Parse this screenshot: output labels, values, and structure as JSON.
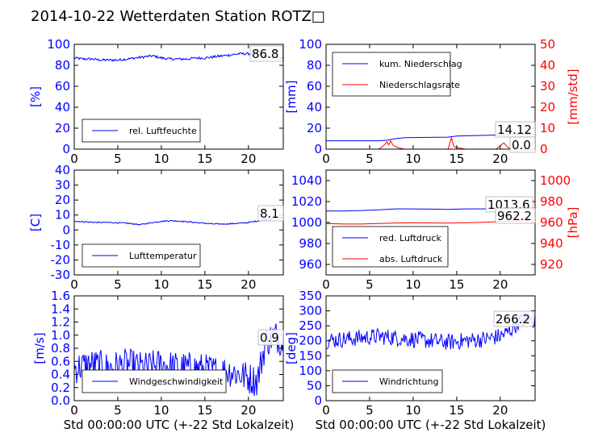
{
  "title": "2014-10-22 Wetterdaten Station ROTZ□",
  "colors": {
    "blue": "#0000ff",
    "red": "#ff0000",
    "black": "#000000"
  },
  "chart_data": [
    {
      "type": "line",
      "ylabel": "[%]",
      "xlabel": "",
      "xlim": [
        0,
        24
      ],
      "ylim": [
        0,
        100
      ],
      "xticks": [
        0,
        5,
        10,
        15,
        20
      ],
      "yticks": [
        0,
        20,
        40,
        60,
        80,
        100
      ],
      "annotation": "86.8",
      "legend": [
        "rel. Luftfeuchte"
      ],
      "series": [
        {
          "name": "rel. Luftfeuchte",
          "color": "blue",
          "x": [
            0,
            1,
            2,
            3,
            4,
            5,
            6,
            7,
            8,
            9,
            10,
            11,
            12,
            13,
            14,
            15,
            16,
            17,
            18,
            19,
            20,
            21,
            22,
            23,
            24
          ],
          "y": [
            87,
            86,
            86,
            85,
            85,
            85,
            86,
            87,
            88,
            89,
            87,
            86,
            86,
            86,
            87,
            87,
            88,
            89,
            90,
            91,
            91,
            90,
            88,
            87,
            86.8
          ],
          "noise": 1.2
        }
      ]
    },
    {
      "type": "line",
      "ylabel": "[mm]",
      "ylabel2": "[mm/std]",
      "xlabel": "",
      "xlim": [
        0,
        24
      ],
      "ylim": [
        0,
        100
      ],
      "ylim2": [
        0,
        50
      ],
      "xticks": [
        0,
        5,
        10,
        15,
        20
      ],
      "yticks": [
        0,
        20,
        40,
        60,
        80,
        100
      ],
      "yticks2": [
        0,
        10,
        20,
        30,
        40,
        50
      ],
      "annotations": [
        "14.12",
        "0.0"
      ],
      "legend": [
        "kum. Niederschlag",
        "Niederschlagsrate"
      ],
      "series": [
        {
          "name": "kum. Niederschlag",
          "color": "blue",
          "x": [
            0,
            6,
            7,
            8,
            9,
            14,
            15,
            20,
            22,
            24
          ],
          "y": [
            8,
            8,
            8.5,
            10,
            11,
            11.5,
            12.5,
            13.5,
            14.1,
            14.12
          ]
        },
        {
          "name": "Niederschlagsrate",
          "color": "red",
          "axis": "right",
          "x": [
            0,
            6.0,
            6.4,
            6.8,
            7.0,
            7.2,
            7.4,
            7.6,
            7.8,
            8.2,
            8.6,
            9,
            14.0,
            14.4,
            14.6,
            14.8,
            15.2,
            15.6,
            16,
            19.5,
            20,
            20.4,
            20.8,
            21.2,
            24
          ],
          "y": [
            0,
            0,
            1.0,
            2.5,
            3.5,
            2.0,
            4.0,
            2.5,
            1.5,
            0.8,
            0.4,
            0,
            0,
            5.5,
            2.0,
            1.0,
            0.6,
            0.3,
            0,
            0,
            1.5,
            3.0,
            1.2,
            0,
            0
          ]
        }
      ]
    },
    {
      "type": "line",
      "ylabel": "[C]",
      "xlabel": "",
      "xlim": [
        0,
        24
      ],
      "ylim": [
        -30,
        40
      ],
      "xticks": [
        0,
        5,
        10,
        15,
        20
      ],
      "yticks": [
        -30,
        -20,
        -10,
        0,
        10,
        20,
        30,
        40
      ],
      "annotation": "8.1",
      "legend": [
        "Lufttemperatur"
      ],
      "series": [
        {
          "name": "Lufttemperatur",
          "color": "blue",
          "x": [
            0,
            1,
            2,
            3,
            4,
            5,
            6,
            7,
            7.5,
            8,
            9,
            10,
            11,
            12,
            13,
            14,
            15,
            16,
            17,
            18,
            19,
            20,
            21,
            22,
            23,
            24
          ],
          "y": [
            6,
            5.5,
            5.2,
            5,
            5,
            4.8,
            4.5,
            4,
            3.5,
            4,
            5,
            5.8,
            6.2,
            6,
            5.5,
            5,
            4.5,
            4,
            4,
            4.2,
            4.5,
            5,
            6,
            7,
            7.8,
            8.1
          ],
          "noise": 0.4
        }
      ]
    },
    {
      "type": "line",
      "ylabel2": "[hPa]",
      "xlabel": "",
      "xlim": [
        0,
        24
      ],
      "ylim": [
        950,
        1050
      ],
      "ylim2": [
        910,
        1010
      ],
      "xticks": [
        0,
        5,
        10,
        15,
        20
      ],
      "yticks": [
        960,
        980,
        1000,
        1020,
        1040
      ],
      "yticks2": [
        920,
        940,
        960,
        980,
        1000
      ],
      "annotations": [
        "1013.6",
        "962.2"
      ],
      "legend": [
        "red. Luftdruck",
        "abs. Luftdruck"
      ],
      "series": [
        {
          "name": "red. Luftdruck",
          "color": "blue",
          "x": [
            0,
            2,
            4,
            6,
            8,
            10,
            12,
            14,
            16,
            18,
            20,
            22,
            24
          ],
          "y": [
            1011,
            1011,
            1011.5,
            1012,
            1013,
            1013,
            1012.8,
            1012.5,
            1013,
            1013,
            1013.2,
            1013.4,
            1013.6
          ]
        },
        {
          "name": "abs. Luftdruck",
          "color": "red",
          "axis": "right",
          "x": [
            0,
            2,
            4,
            6,
            8,
            10,
            12,
            14,
            16,
            18,
            20,
            22,
            24
          ],
          "y": [
            959,
            958.5,
            958.5,
            959,
            959.5,
            959.8,
            959.6,
            959.4,
            959.8,
            960.2,
            960.8,
            961.6,
            962.2
          ]
        }
      ]
    },
    {
      "type": "line",
      "ylabel": "[m/s]",
      "xlabel": "Std 00:00:00 UTC (+-22 Std Lokalzeit)",
      "xlim": [
        0,
        24
      ],
      "ylim": [
        0,
        1.6
      ],
      "xticks": [
        0,
        5,
        10,
        15,
        20
      ],
      "yticks": [
        0.0,
        0.2,
        0.4,
        0.6,
        0.8,
        1.0,
        1.2,
        1.4,
        1.6
      ],
      "annotation": "0.9",
      "legend": [
        "Windgeschwindigkeit"
      ],
      "series": [
        {
          "name": "Windgeschwindigkeit",
          "color": "blue",
          "x": [
            0,
            2,
            4,
            6,
            8,
            10,
            12,
            14,
            16,
            18,
            20,
            21,
            22,
            23,
            24
          ],
          "y": [
            0.5,
            0.55,
            0.5,
            0.55,
            0.5,
            0.55,
            0.5,
            0.5,
            0.45,
            0.45,
            0.35,
            0.3,
            0.9,
            1.0,
            0.9
          ],
          "noise": 0.25
        }
      ]
    },
    {
      "type": "line",
      "ylabel": "[deg]",
      "xlabel": "Std 00:00:00 UTC (+-22 Std Lokalzeit)",
      "xlim": [
        0,
        24
      ],
      "ylim": [
        0,
        350
      ],
      "xticks": [
        0,
        5,
        10,
        15,
        20
      ],
      "yticks": [
        0,
        50,
        100,
        150,
        200,
        250,
        300,
        350
      ],
      "annotation": "266.2",
      "legend": [
        "Windrichtung"
      ],
      "series": [
        {
          "name": "Windrichtung",
          "color": "blue",
          "x": [
            0,
            2,
            4,
            6,
            8,
            10,
            12,
            14,
            16,
            18,
            20,
            21,
            22,
            23,
            24
          ],
          "y": [
            200,
            205,
            210,
            215,
            210,
            205,
            200,
            195,
            200,
            205,
            215,
            230,
            260,
            275,
            266
          ],
          "noise": 28
        }
      ]
    }
  ]
}
